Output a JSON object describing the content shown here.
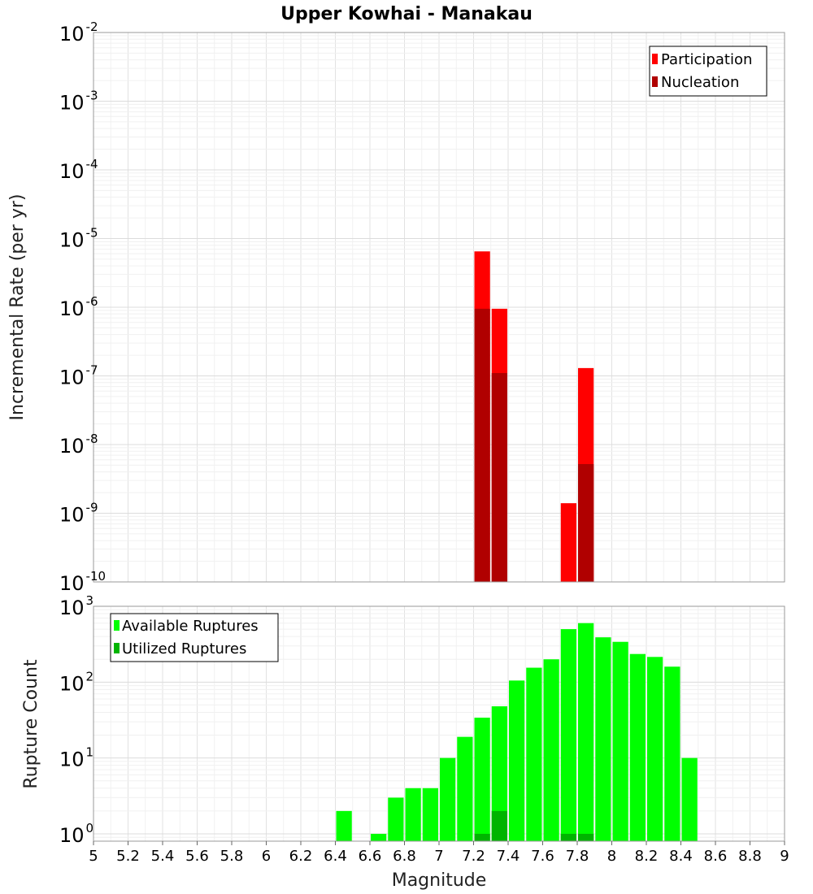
{
  "chart_data": [
    {
      "type": "bar",
      "title": "Upper Kowhai - Manakau",
      "xlabel": "Magnitude",
      "ylabel": "Incremental Rate (per yr)",
      "yscale": "log",
      "ylim": [
        1e-10,
        0.01
      ],
      "xlim": [
        5,
        9
      ],
      "bin_width": 0.1,
      "grid": true,
      "legend_position": "top-right",
      "series": [
        {
          "name": "Participation",
          "color": "#ff0000",
          "x": [
            7.25,
            7.35,
            7.75,
            7.85
          ],
          "values": [
            6.5e-06,
            9.5e-07,
            1.4e-09,
            1.3e-07
          ]
        },
        {
          "name": "Nucleation",
          "color": "#b00000",
          "x": [
            7.25,
            7.35,
            7.85
          ],
          "values": [
            9.5e-07,
            1.1e-07,
            5.2e-09
          ]
        }
      ]
    },
    {
      "type": "bar",
      "xlabel": "Magnitude",
      "ylabel": "Rupture Count",
      "yscale": "log",
      "ylim": [
        0.8,
        1000
      ],
      "xlim": [
        5,
        9
      ],
      "bin_width": 0.1,
      "grid": true,
      "legend_position": "top-left",
      "xticks": [
        "5",
        "5.2",
        "5.4",
        "5.6",
        "5.8",
        "6",
        "6.2",
        "6.4",
        "6.6",
        "6.8",
        "7",
        "7.2",
        "7.4",
        "7.6",
        "7.8",
        "8",
        "8.2",
        "8.4",
        "8.6",
        "8.8",
        "9"
      ],
      "series": [
        {
          "name": "Available Ruptures",
          "color": "#00ff00",
          "x": [
            6.45,
            6.65,
            6.75,
            6.85,
            6.95,
            7.05,
            7.15,
            7.25,
            7.35,
            7.45,
            7.55,
            7.65,
            7.75,
            7.85,
            7.95,
            8.05,
            8.15,
            8.25,
            8.35,
            8.45
          ],
          "values": [
            2,
            1,
            3,
            4,
            4,
            10,
            19,
            34,
            48,
            105,
            155,
            200,
            500,
            600,
            390,
            340,
            235,
            215,
            160,
            10
          ]
        },
        {
          "name": "Utilized Ruptures",
          "color": "#00b400",
          "x": [
            7.25,
            7.35,
            7.75,
            7.85
          ],
          "values": [
            1,
            2,
            1,
            1
          ]
        }
      ]
    }
  ]
}
